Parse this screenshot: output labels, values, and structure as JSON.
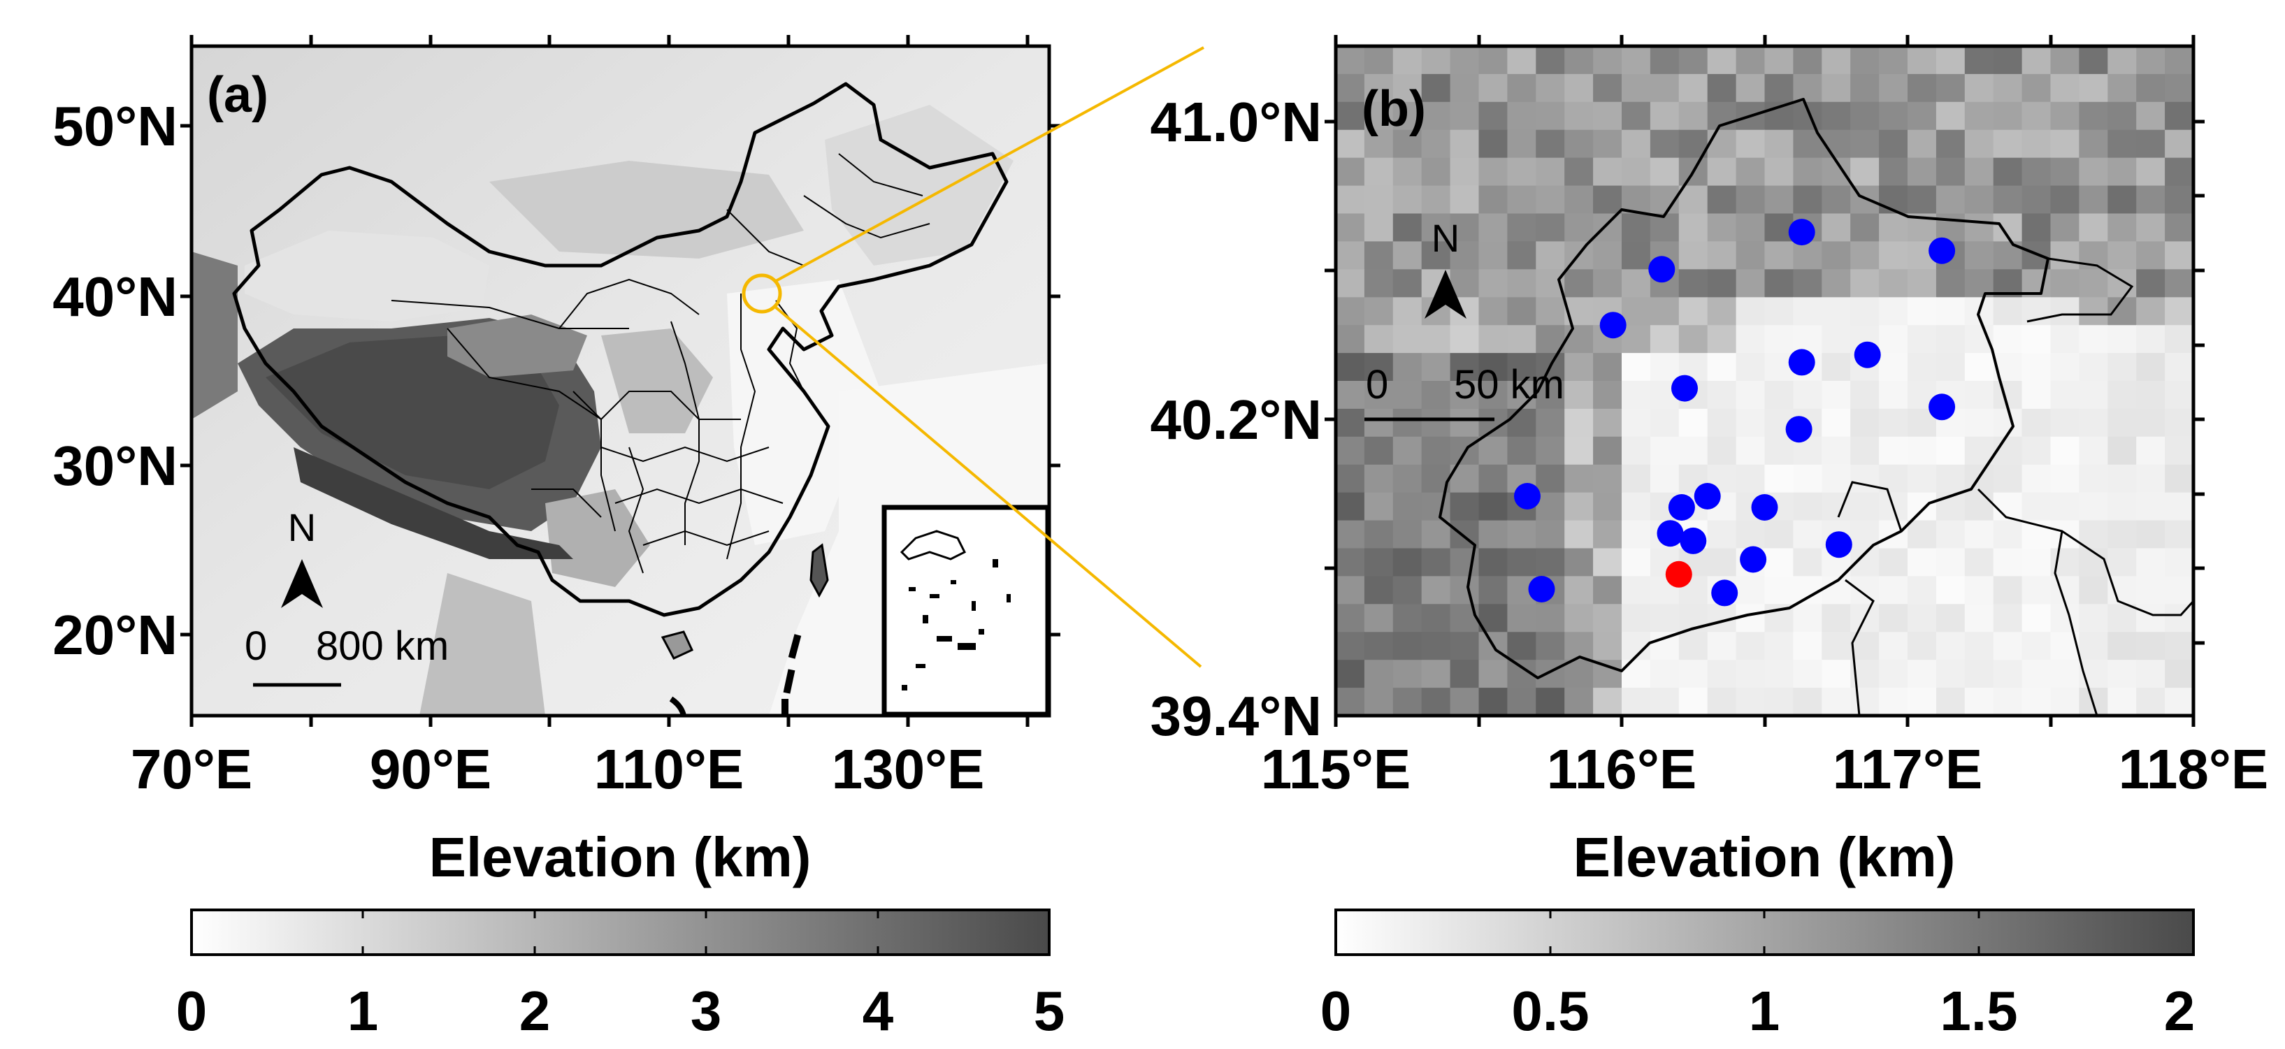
{
  "panel_a": {
    "label": "(a)",
    "lon_ticks": [
      "70°E",
      "90°E",
      "110°E",
      "130°E"
    ],
    "lat_ticks": [
      "50°N",
      "40°N",
      "30°N",
      "20°N"
    ],
    "north": "N",
    "scale": {
      "zero": "0",
      "dist": "800 km"
    },
    "xlabel": "Elevation (km)",
    "colorbar": {
      "min": 0,
      "max": 5,
      "ticks": [
        "0",
        "1",
        "2",
        "3",
        "4",
        "5"
      ]
    }
  },
  "panel_b": {
    "label": "(b)",
    "lon_ticks": [
      "115°E",
      "116°E",
      "117°E",
      "118°E"
    ],
    "lat_ticks": [
      "41.0°N",
      "40.2°N",
      "39.4°N"
    ],
    "north": "N",
    "scale": {
      "zero": "0",
      "dist": "50 km"
    },
    "xlabel": "Elevation (km)",
    "colorbar": {
      "min": 0,
      "max": 2,
      "ticks": [
        "0",
        "0.5",
        "1",
        "1.5",
        "2"
      ]
    },
    "stations_blue": [
      [
        116.63,
        40.7
      ],
      [
        117.12,
        40.65
      ],
      [
        116.14,
        40.6
      ],
      [
        115.97,
        40.45
      ],
      [
        116.63,
        40.35
      ],
      [
        116.86,
        40.37
      ],
      [
        116.22,
        40.28
      ],
      [
        117.12,
        40.23
      ],
      [
        116.62,
        40.17
      ],
      [
        115.67,
        39.99
      ],
      [
        116.3,
        39.99
      ],
      [
        116.21,
        39.96
      ],
      [
        116.5,
        39.96
      ],
      [
        116.17,
        39.89
      ],
      [
        116.25,
        39.87
      ],
      [
        116.76,
        39.86
      ],
      [
        116.46,
        39.82
      ],
      [
        115.72,
        39.74
      ],
      [
        116.36,
        39.73
      ]
    ],
    "stations_red": [
      [
        116.2,
        39.78
      ]
    ]
  },
  "colors": {
    "station": "#0000ff",
    "highlight": "#ff0000",
    "connector": "#f5b800"
  }
}
